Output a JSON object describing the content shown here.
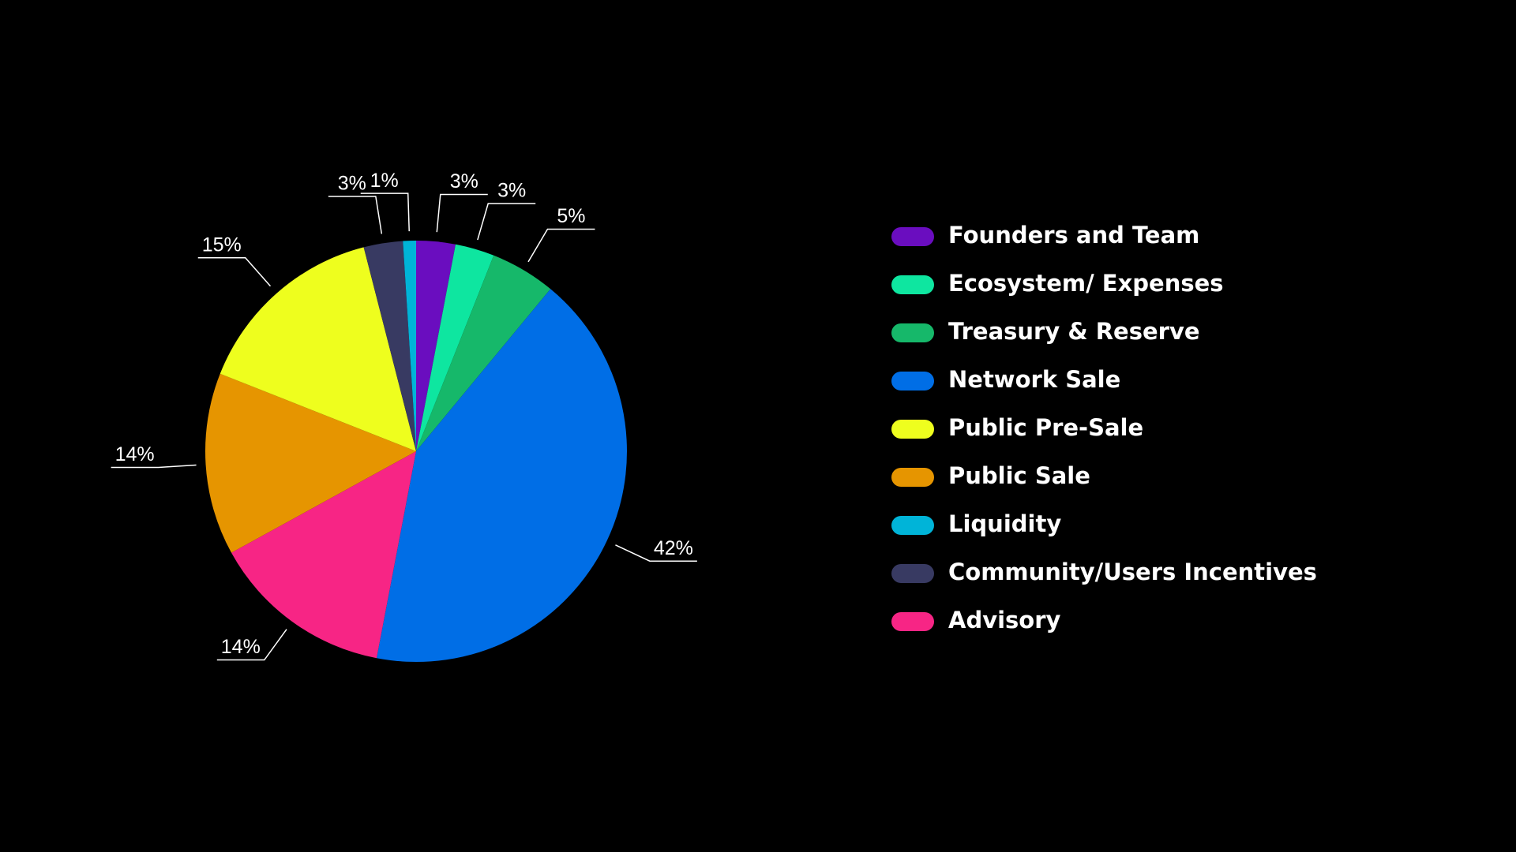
{
  "chart_data": {
    "type": "pie",
    "categories": [
      "Founders and Team",
      "Ecosystem/ Expenses",
      "Treasury & Reserve",
      "Network Sale",
      "Public Pre-Sale",
      "Public Sale",
      "Liquidity",
      "Community/Users Incentives",
      "Advisory"
    ],
    "values": [
      3,
      3,
      5,
      42,
      15,
      14,
      1,
      3,
      14
    ],
    "value_labels": [
      "3%",
      "3%",
      "5%",
      "42%",
      "15%",
      "14%",
      "1%",
      "3%",
      "14%"
    ],
    "colors": [
      "#6a0dbf",
      "#0ee6a0",
      "#16b86a",
      "#006ee6",
      "#eefe1e",
      "#e69500",
      "#00b4d8",
      "#383a62",
      "#f72585"
    ],
    "legend": "right"
  }
}
